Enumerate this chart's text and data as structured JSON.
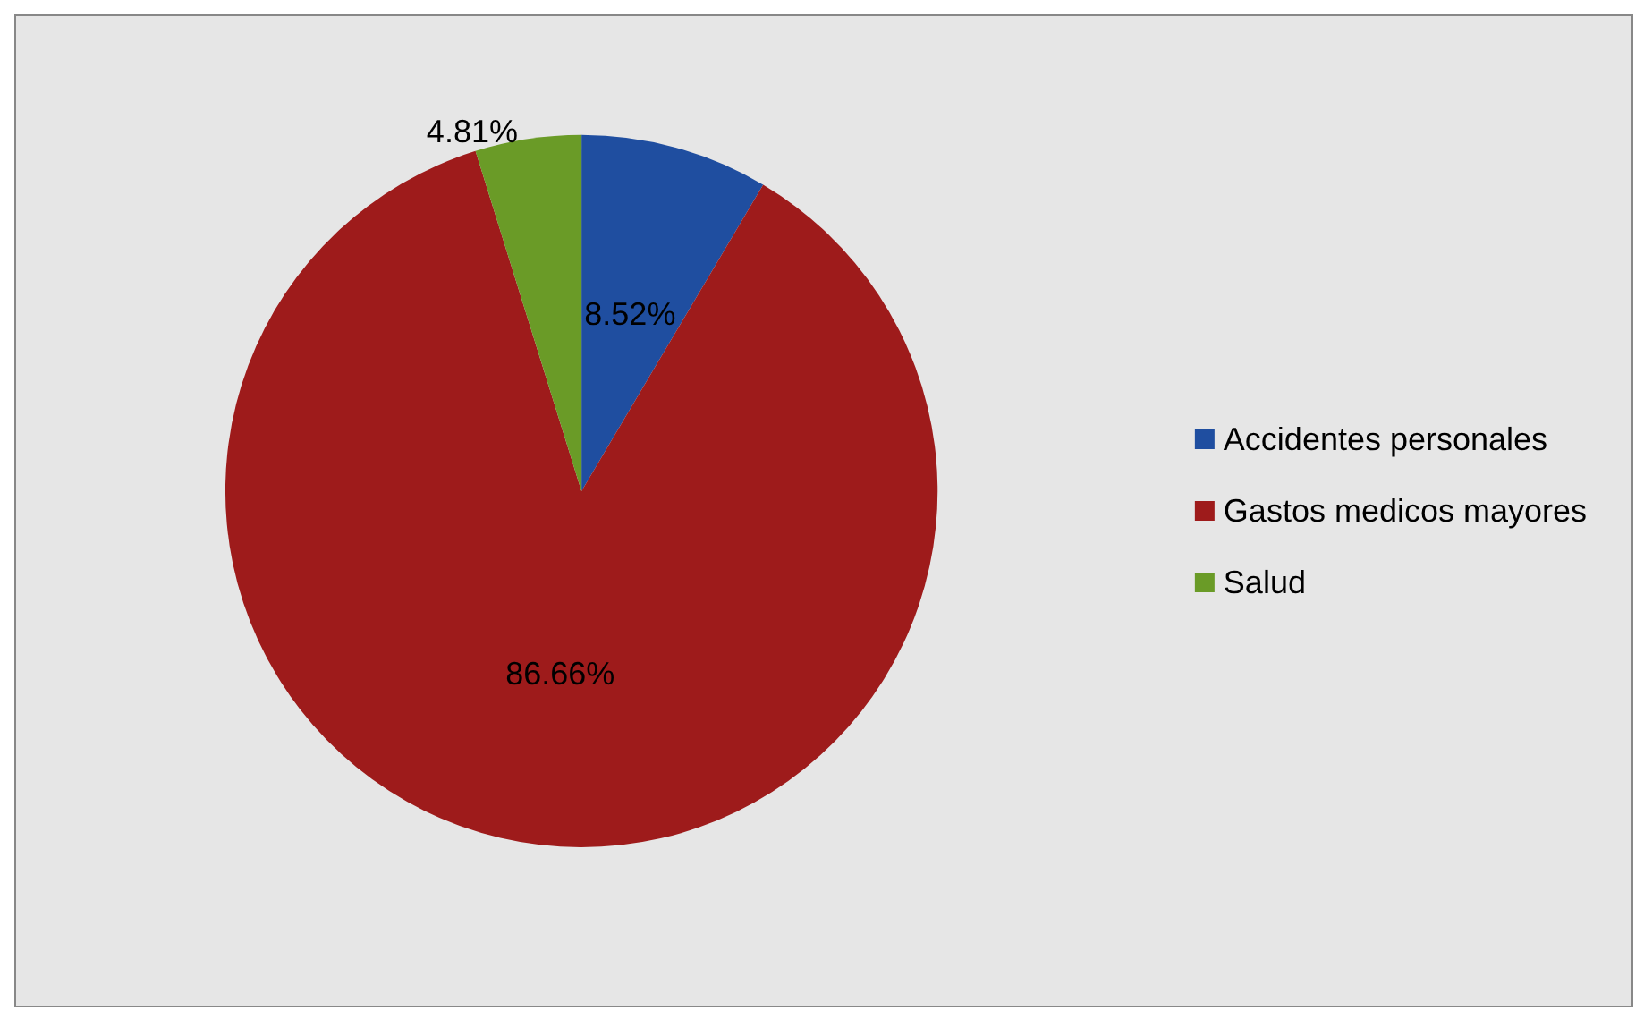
{
  "chart_data": {
    "type": "pie",
    "categories": [
      "Accidentes personales",
      "Gastos medicos mayores",
      "Salud"
    ],
    "values": [
      8.52,
      86.66,
      4.81
    ],
    "colors": [
      "#1f4ea0",
      "#9e1b1b",
      "#6a9b27"
    ],
    "value_labels": [
      "8.52%",
      "86.66%",
      "4.81%"
    ],
    "legend": "right"
  }
}
